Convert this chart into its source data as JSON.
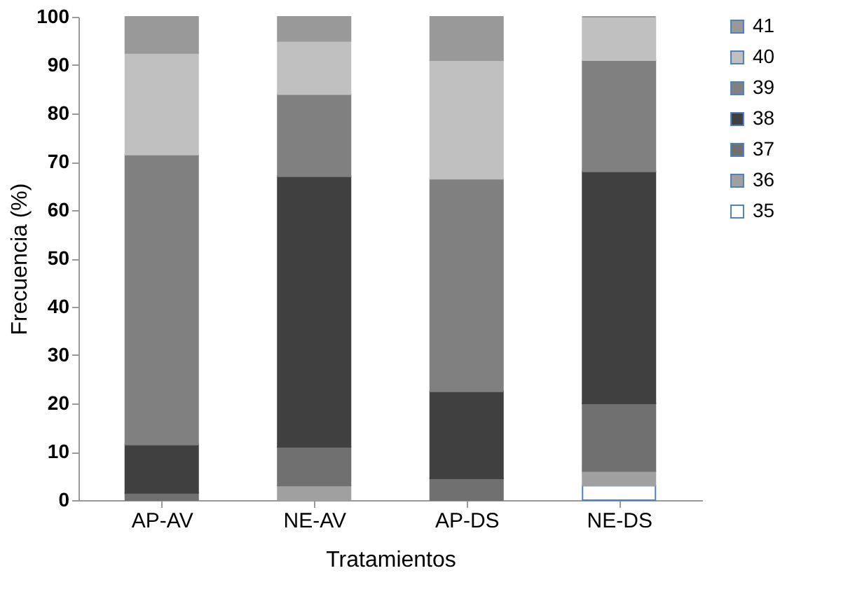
{
  "chart_data": {
    "type": "bar",
    "stacked": true,
    "xlabel": "Tratamientos",
    "ylabel": "Frecuencia (%)",
    "categories": [
      "AP-AV",
      "NE-AV",
      "AP-DS",
      "NE-DS"
    ],
    "series": [
      {
        "name": "35",
        "color": "#ffffff",
        "values": [
          0,
          0,
          0,
          3
        ]
      },
      {
        "name": "36",
        "color": "#a0a0a0",
        "values": [
          0,
          3,
          0,
          3
        ]
      },
      {
        "name": "37",
        "color": "#707070",
        "values": [
          1.5,
          8,
          4.5,
          14
        ]
      },
      {
        "name": "38",
        "color": "#404040",
        "values": [
          10,
          56,
          18,
          48
        ]
      },
      {
        "name": "39",
        "color": "#808080",
        "values": [
          60,
          17,
          44,
          23
        ]
      },
      {
        "name": "40",
        "color": "#c0c0c0",
        "values": [
          21,
          11,
          24.5,
          9
        ]
      },
      {
        "name": "41",
        "color": "#999999",
        "values": [
          7.5,
          5,
          9,
          0
        ]
      }
    ],
    "ylim": [
      0,
      100
    ],
    "yticks": [
      0,
      10,
      20,
      30,
      40,
      50,
      60,
      70,
      80,
      90,
      100
    ],
    "grid": false,
    "legend": "right"
  }
}
